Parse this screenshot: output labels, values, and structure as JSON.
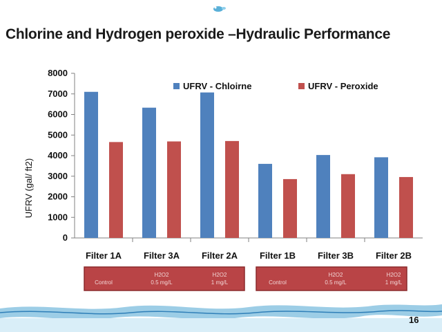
{
  "slide": {
    "title": "Chlorine and Hydrogen peroxide –Hydraulic Performance",
    "page_number": "16"
  },
  "colors": {
    "series1": "#4F81BD",
    "series2": "#C0504D",
    "box": "#B94446",
    "box_border": "#8B2A2C"
  },
  "icons": {
    "logo": "water-drop-logo-icon",
    "footer": "water-wave-icon"
  },
  "chart_data": {
    "type": "bar",
    "title": "",
    "xlabel": "",
    "ylabel": "UFRV (gal/ ft2)",
    "ylim": [
      0,
      8000
    ],
    "yticks": [
      0,
      1000,
      2000,
      3000,
      4000,
      5000,
      6000,
      7000,
      8000
    ],
    "grid": false,
    "legend_position": "top",
    "categories": [
      "Filter 1A",
      "Filter 3A",
      "Filter 2A",
      "Filter 1B",
      "Filter 3B",
      "Filter 2B"
    ],
    "series": [
      {
        "name": "UFRV - Chloirne",
        "values": [
          7100,
          6330,
          7070,
          3600,
          4030,
          3920
        ]
      },
      {
        "name": "UFRV - Peroxide",
        "values": [
          4660,
          4690,
          4710,
          2860,
          3100,
          2960
        ]
      }
    ],
    "treatment_groups": [
      {
        "labels": [
          [
            "Control"
          ],
          [
            "H2O2",
            "0.5 mg/L"
          ],
          [
            "H2O2",
            "1 mg/L"
          ]
        ]
      },
      {
        "labels": [
          [
            "Control"
          ],
          [
            "H2O2",
            "0.5 mg/L"
          ],
          [
            "H2O2",
            "1 mg/L"
          ]
        ]
      }
    ]
  }
}
